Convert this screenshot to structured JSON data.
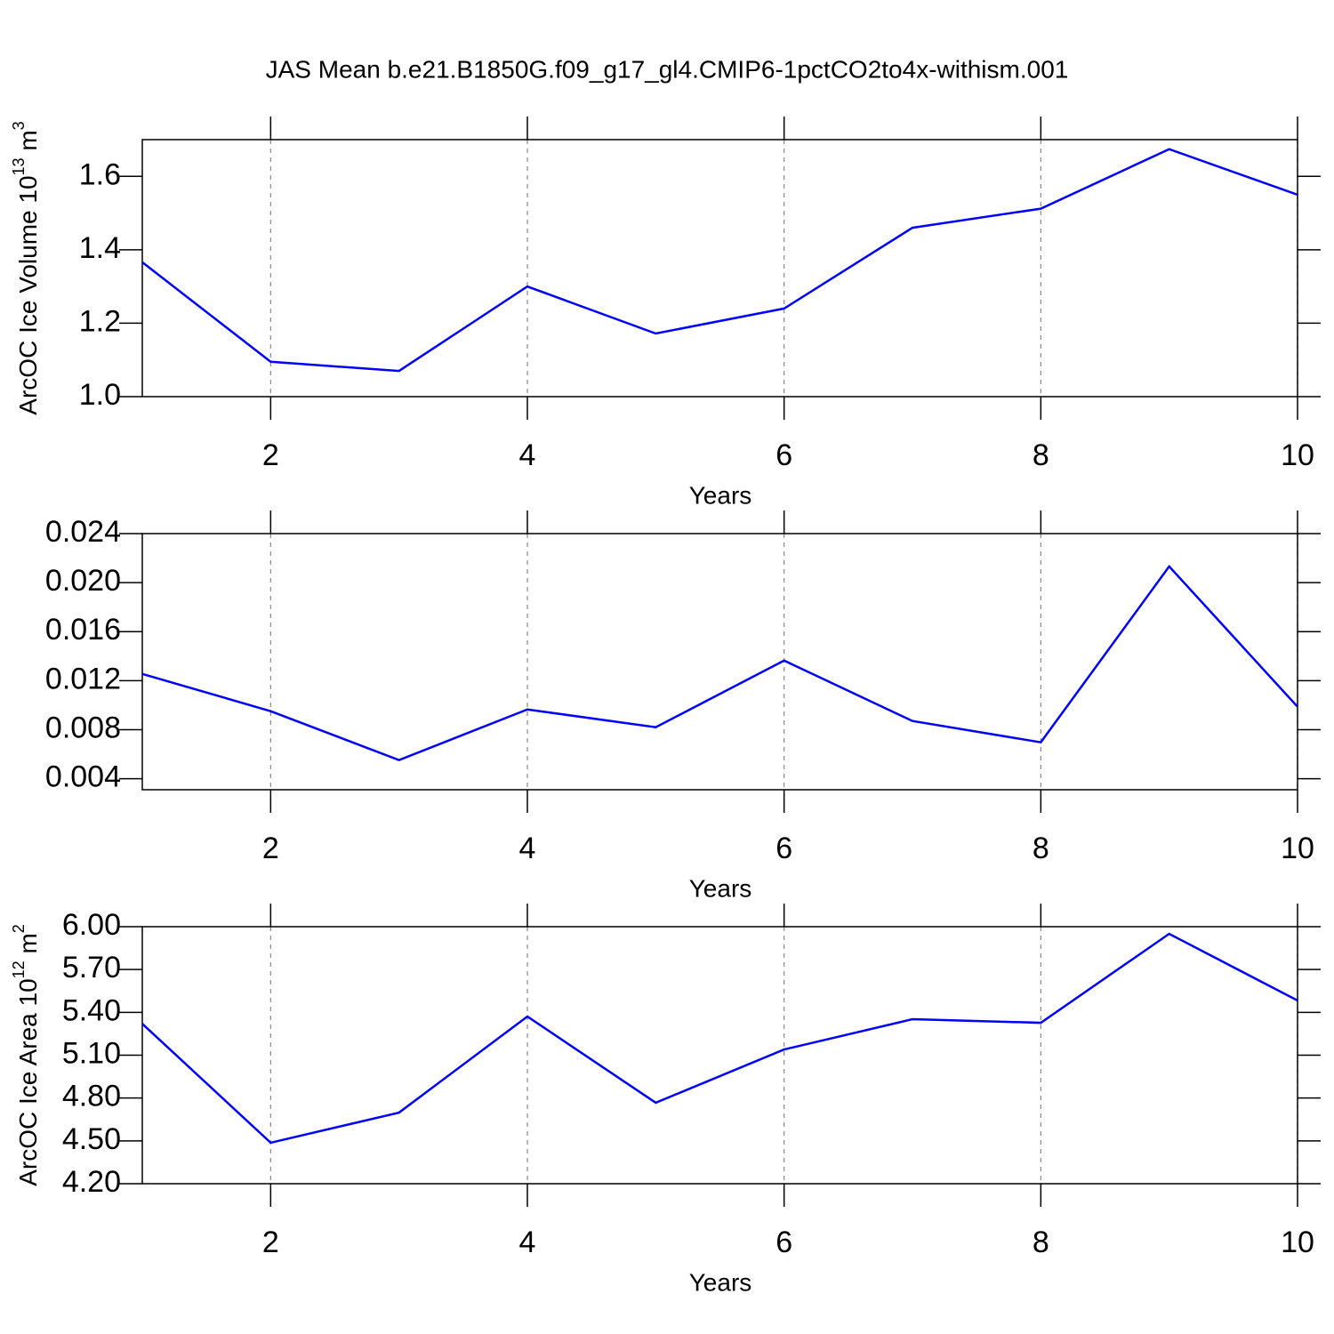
{
  "chart_data": [
    {
      "type": "line",
      "title": "JAS Mean b.e21.B1850G.f09_g17_gl4.CMIP6-1pctCO2to4x-withism.001",
      "xlabel": "Years",
      "ylabel": [
        "ArcOC Ice Volume 10",
        "13",
        " m",
        "3"
      ],
      "x": [
        1,
        2,
        3,
        4,
        5,
        6,
        7,
        8,
        9,
        10
      ],
      "series": [
        {
          "color": "#0000ff",
          "values": [
            1.366,
            1.095,
            1.07,
            1.3,
            1.172,
            1.24,
            1.46,
            1.512,
            1.674,
            1.55
          ]
        }
      ],
      "xlim": [
        1,
        10
      ],
      "xticks": [
        2,
        4,
        6,
        8,
        10
      ],
      "ylim": [
        1.0,
        1.7
      ],
      "yticks": [
        {
          "value": 1.0,
          "label": "1.0"
        },
        1.2,
        1.4,
        1.6
      ],
      "grid": true
    },
    {
      "type": "line",
      "xlabel": "Years",
      "x": [
        1,
        2,
        3,
        4,
        5,
        6,
        7,
        8,
        9,
        10
      ],
      "series": [
        {
          "color": "#0000ff",
          "values": [
            0.01255,
            0.00951,
            0.00552,
            0.00965,
            0.0082,
            0.01364,
            0.00871,
            0.00697,
            0.02132,
            0.00987
          ]
        }
      ],
      "xlim": [
        1,
        10
      ],
      "xticks": [
        2,
        4,
        6,
        8,
        10
      ],
      "ylim": [
        0.0031,
        0.024
      ],
      "yticks": [
        0.004,
        0.008,
        0.012,
        0.016,
        {
          "value": 0.02,
          "label": "0.020"
        },
        0.024
      ],
      "grid": true
    },
    {
      "type": "line",
      "xlabel": "Years",
      "ylabel": [
        "ArcOC Ice Area 10",
        "12",
        " m",
        "2"
      ],
      "x": [
        1,
        2,
        3,
        4,
        5,
        6,
        7,
        8,
        9,
        10
      ],
      "series": [
        {
          "color": "#0000ff",
          "values": [
            5.32,
            4.487,
            4.698,
            5.371,
            4.767,
            5.14,
            5.352,
            5.327,
            5.95,
            5.483
          ]
        }
      ],
      "xlim": [
        1,
        10
      ],
      "xticks": [
        2,
        4,
        6,
        8,
        10
      ],
      "ylim": [
        4.2,
        6.0
      ],
      "yticks": [
        {
          "value": 4.2,
          "label": "4.20"
        },
        {
          "value": 4.5,
          "label": "4.50"
        },
        {
          "value": 4.8,
          "label": "4.80"
        },
        {
          "value": 5.1,
          "label": "5.10"
        },
        {
          "value": 5.4,
          "label": "5.40"
        },
        {
          "value": 5.7,
          "label": "5.70"
        },
        {
          "value": 6.0,
          "label": "6.00"
        }
      ],
      "grid": true
    }
  ]
}
